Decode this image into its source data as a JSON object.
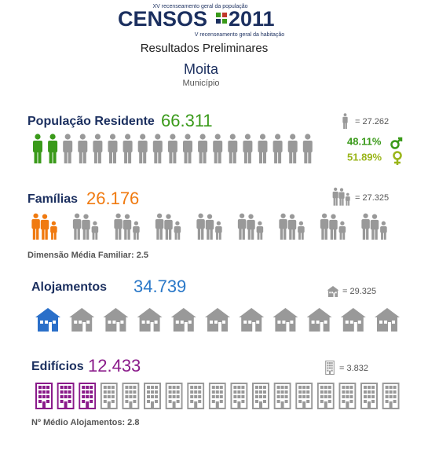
{
  "header": {
    "top_line": "XV recenseamento geral da população",
    "logo_left": "CENSOS",
    "logo_right": "2011",
    "bottom_line": "V recenseamento geral da habitação"
  },
  "subtitle": "Resultados Preliminares",
  "place": "Moita",
  "place_type": "Município",
  "population": {
    "label": "População Residente",
    "value": "66.311",
    "legend": "= 27.262",
    "male": "48.11%",
    "female": "51.89%"
  },
  "families": {
    "label": "Famílias",
    "value": "26.176",
    "legend": "= 27.325",
    "note": "Dimensão Média Familiar: 2.5"
  },
  "dwellings": {
    "label": "Alojamentos",
    "value": "34.739",
    "legend": "= 29.325"
  },
  "buildings": {
    "label": "Edifícios",
    "value": "12.433",
    "legend": "= 3.832",
    "note": "Nº Médio Alojamentos: 2.8"
  }
}
